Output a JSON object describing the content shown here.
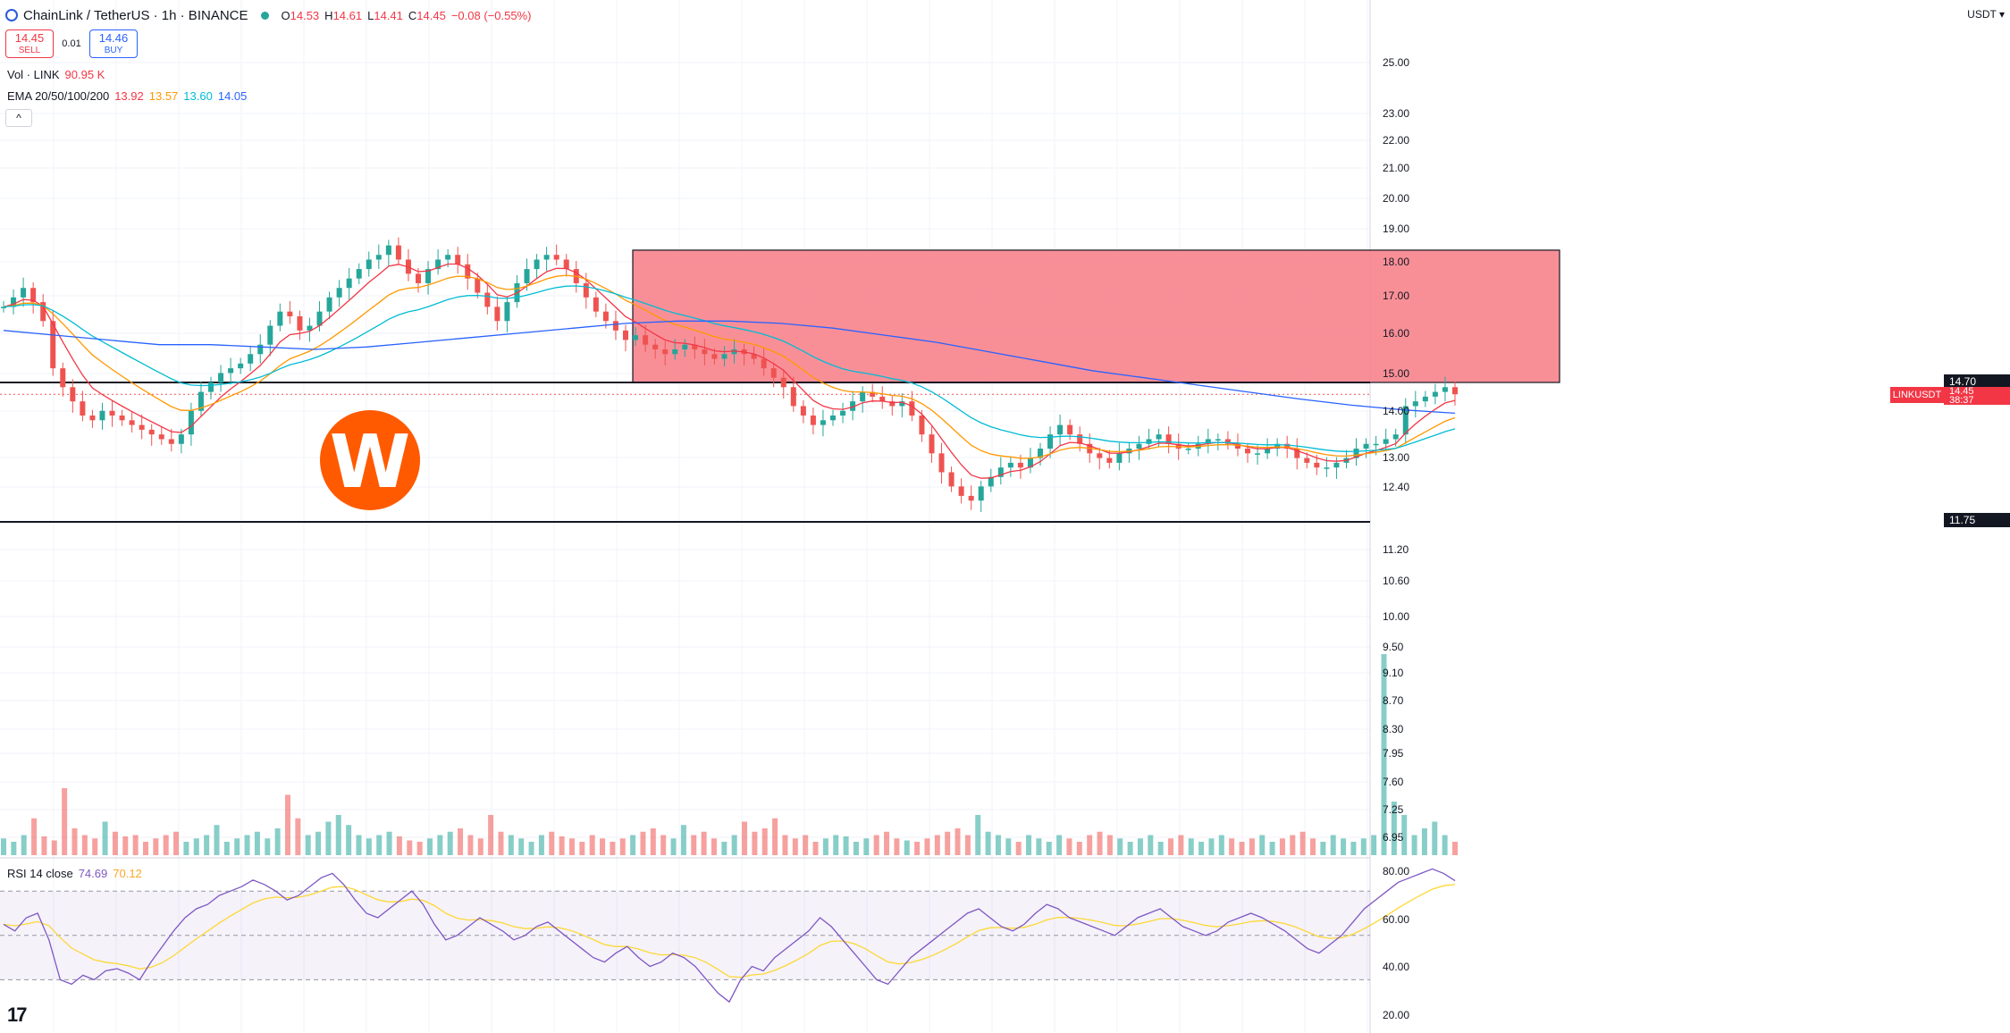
{
  "header": {
    "symbol": "ChainLink / TetherUS · 1h · BINANCE",
    "o_label": "O",
    "o": "14.53",
    "h_label": "H",
    "h": "14.61",
    "l_label": "L",
    "l": "14.41",
    "c_label": "C",
    "c": "14.45",
    "change": "−0.08 (−0.55%)"
  },
  "trade": {
    "sell_price": "14.45",
    "sell_label": "SELL",
    "spread": "0.01",
    "buy_price": "14.46",
    "buy_label": "BUY"
  },
  "volume_indicator": {
    "label": "Vol · LINK",
    "value": "90.95 K"
  },
  "ema_indicator": {
    "label": "EMA 20/50/100/200",
    "v20": "13.92",
    "v50": "13.57",
    "v100": "13.60",
    "v200": "14.05"
  },
  "rsi_indicator": {
    "label": "RSI 14 close",
    "rsi": "74.69",
    "ma": "70.12"
  },
  "axis": {
    "currency": "USDT",
    "level_high": "14.70",
    "level_low": "11.75",
    "symbol_tag": "LINKUSDT",
    "last_price": "14.45",
    "countdown": "38:37",
    "collapse_glyph": "^",
    "logo_text": "17"
  },
  "colors": {
    "up": "#26a69a",
    "down": "#ef5350",
    "ema20": "#f23645",
    "ema50": "#ff9800",
    "ema100": "#00bcd4",
    "ema200": "#2962ff",
    "zone": "#f7838c",
    "rsi": "#7e57c2",
    "rsi_ma": "#fdd835",
    "watermark": "#ff5a00"
  },
  "chart_data": [
    {
      "type": "candlestick",
      "title": "ChainLink / TetherUS · 1h · BINANCE",
      "y_axis_ticks": [
        "25.00",
        "23.00",
        "22.00",
        "21.00",
        "20.00",
        "19.00",
        "18.00",
        "17.00",
        "16.00",
        "15.00",
        "14.00",
        "13.00",
        "12.40",
        "11.20",
        "10.60",
        "10.00",
        "9.50",
        "9.10",
        "8.70",
        "8.30",
        "7.95",
        "7.60",
        "7.25",
        "6.95"
      ],
      "horizontal_levels": [
        14.7,
        11.75
      ],
      "supply_zone": {
        "low": 14.7,
        "high": 17.5
      },
      "last_price": 14.45,
      "ema_last": {
        "ema20": 13.92,
        "ema50": 13.57,
        "ema100": 13.6,
        "ema200": 14.05
      },
      "close_path": [
        16.3,
        16.5,
        16.7,
        16.4,
        16.0,
        15.0,
        14.6,
        14.3,
        14.0,
        13.9,
        14.1,
        14.0,
        13.9,
        13.8,
        13.7,
        13.6,
        13.5,
        13.4,
        13.6,
        14.1,
        14.5,
        14.7,
        14.9,
        15.0,
        15.1,
        15.3,
        15.5,
        15.9,
        16.2,
        16.1,
        15.8,
        15.9,
        16.2,
        16.5,
        16.7,
        16.9,
        17.1,
        17.3,
        17.4,
        17.6,
        17.3,
        17.0,
        16.8,
        17.1,
        17.3,
        17.4,
        17.2,
        16.9,
        16.6,
        16.3,
        16.0,
        16.4,
        16.8,
        17.1,
        17.3,
        17.4,
        17.3,
        17.1,
        16.8,
        16.5,
        16.2,
        16.0,
        15.8,
        15.6,
        15.7,
        15.5,
        15.4,
        15.3,
        15.4,
        15.5,
        15.4,
        15.3,
        15.2,
        15.3,
        15.4,
        15.3,
        15.2,
        15.0,
        14.8,
        14.6,
        14.2,
        14.0,
        13.8,
        13.9,
        14.0,
        14.1,
        14.3,
        14.5,
        14.4,
        14.3,
        14.2,
        14.3,
        14.0,
        13.6,
        13.2,
        12.8,
        12.5,
        12.3,
        12.2,
        12.5,
        12.7,
        12.9,
        13.0,
        12.9,
        13.1,
        13.3,
        13.6,
        13.8,
        13.6,
        13.4,
        13.2,
        13.1,
        13.0,
        13.2,
        13.3,
        13.4,
        13.5,
        13.6,
        13.4,
        13.3,
        13.3,
        13.4,
        13.5,
        13.5,
        13.4,
        13.3,
        13.2,
        13.2,
        13.3,
        13.4,
        13.3,
        13.1,
        13.0,
        12.9,
        12.9,
        13.0,
        13.1,
        13.3,
        13.4,
        13.4,
        13.5,
        13.6,
        14.2,
        14.3,
        14.4,
        14.5,
        14.6,
        14.45
      ],
      "ema200_path": [
        15.8,
        15.7,
        15.6,
        15.5,
        15.5,
        15.45,
        15.4,
        15.45,
        15.55,
        15.65,
        15.75,
        15.85,
        15.95,
        16.0,
        16.0,
        15.95,
        15.85,
        15.7,
        15.55,
        15.35,
        15.15,
        14.95,
        14.8,
        14.65,
        14.5,
        14.35,
        14.22,
        14.12,
        14.05
      ],
      "volume": [
        0.25,
        0.2,
        0.3,
        0.55,
        0.28,
        0.22,
        1.0,
        0.4,
        0.3,
        0.25,
        0.5,
        0.35,
        0.28,
        0.3,
        0.2,
        0.25,
        0.3,
        0.35,
        0.2,
        0.25,
        0.3,
        0.45,
        0.2,
        0.25,
        0.3,
        0.35,
        0.25,
        0.4,
        0.9,
        0.55,
        0.3,
        0.35,
        0.5,
        0.6,
        0.45,
        0.3,
        0.25,
        0.3,
        0.35,
        0.28,
        0.22,
        0.2,
        0.25,
        0.3,
        0.35,
        0.4,
        0.3,
        0.25,
        0.6,
        0.35,
        0.3,
        0.25,
        0.2,
        0.3,
        0.35,
        0.28,
        0.25,
        0.2,
        0.3,
        0.25,
        0.2,
        0.25,
        0.3,
        0.35,
        0.4,
        0.3,
        0.25,
        0.45,
        0.3,
        0.35,
        0.25,
        0.2,
        0.3,
        0.5,
        0.35,
        0.4,
        0.55,
        0.3,
        0.25,
        0.3,
        0.2,
        0.25,
        0.3,
        0.28,
        0.2,
        0.25,
        0.3,
        0.35,
        0.25,
        0.22,
        0.2,
        0.25,
        0.3,
        0.35,
        0.4,
        0.3,
        0.6,
        0.35,
        0.3,
        0.25,
        0.2,
        0.3,
        0.25,
        0.2,
        0.3,
        0.25,
        0.2,
        0.3,
        0.35,
        0.3,
        0.25,
        0.2,
        0.25,
        0.3,
        0.2,
        0.25,
        0.3,
        0.25,
        0.2,
        0.25,
        0.3,
        0.25,
        0.2,
        0.25,
        0.3,
        0.2,
        0.25,
        0.3,
        0.35,
        0.25,
        0.2,
        0.3,
        0.25,
        0.2,
        0.25,
        0.3,
        3.0,
        0.8,
        0.6,
        0.3,
        0.4,
        0.5,
        0.3,
        0.2
      ],
      "rsi_path": [
        55,
        52,
        58,
        60,
        48,
        30,
        28,
        32,
        30,
        34,
        35,
        33,
        30,
        38,
        45,
        52,
        58,
        62,
        64,
        68,
        70,
        72,
        75,
        73,
        70,
        66,
        68,
        72,
        76,
        78,
        73,
        66,
        60,
        58,
        62,
        66,
        70,
        64,
        55,
        48,
        50,
        54,
        58,
        55,
        52,
        48,
        50,
        54,
        56,
        52,
        48,
        44,
        40,
        38,
        42,
        45,
        40,
        36,
        38,
        42,
        40,
        36,
        30,
        24,
        20,
        30,
        36,
        34,
        40,
        44,
        48,
        52,
        58,
        54,
        48,
        42,
        36,
        30,
        28,
        34,
        40,
        44,
        48,
        52,
        56,
        60,
        62,
        58,
        54,
        52,
        55,
        60,
        64,
        62,
        58,
        56,
        54,
        52,
        50,
        54,
        58,
        60,
        62,
        58,
        54,
        52,
        50,
        52,
        56,
        58,
        60,
        58,
        55,
        52,
        48,
        44,
        42,
        46,
        50,
        56,
        62,
        66,
        70,
        74,
        76,
        78,
        80,
        78,
        74.69
      ],
      "rsi_levels": [
        70,
        50,
        30
      ],
      "rsi_ticks": [
        "80.00",
        "60.00",
        "40.00",
        "20.00"
      ]
    }
  ]
}
